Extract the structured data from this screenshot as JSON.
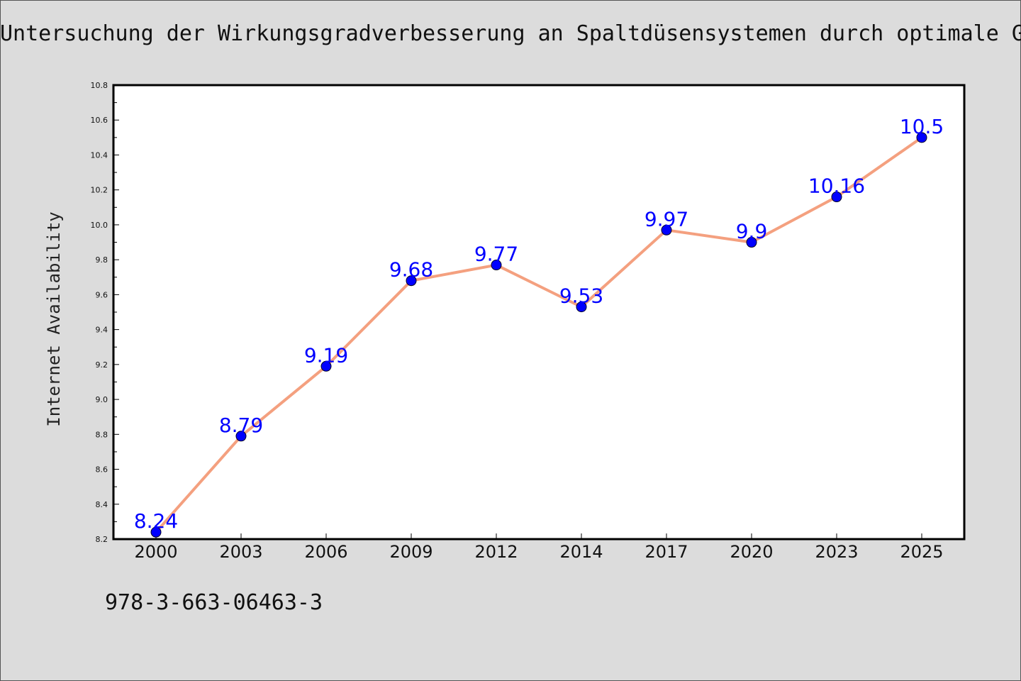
{
  "header": {
    "title": "Untersuchung der Wirkungsgradverbesserung an Spaltdüsensystemen durch optimale G"
  },
  "footer": {
    "isbn": "978-3-663-06463-3"
  },
  "colors": {
    "background": "#dcdcdc",
    "plot_background": "#ffffff",
    "line": "#f4a07f",
    "marker": "#0000ff",
    "data_label": "#0000ff"
  },
  "chart_data": {
    "type": "line",
    "title": "Untersuchung der Wirkungsgradverbesserung an Spaltdüsensystemen durch optimale G",
    "xlabel": "",
    "ylabel": "Internet Availability",
    "categories": [
      "2000",
      "2003",
      "2006",
      "2009",
      "2012",
      "2014",
      "2017",
      "2020",
      "2023",
      "2025"
    ],
    "series": [
      {
        "values": [
          8.24,
          8.79,
          9.19,
          9.68,
          9.77,
          9.53,
          9.97,
          9.9,
          10.16,
          10.5
        ]
      }
    ],
    "ylim": [
      8.2,
      10.8
    ],
    "yticks": [
      8.2,
      8.4,
      8.6,
      8.8,
      9.0,
      9.2,
      9.4,
      9.6,
      9.8,
      10.0,
      10.2,
      10.4,
      10.6,
      10.8
    ],
    "ytick_labels": [
      "8.2",
      "8.4",
      "8.6",
      "8.8",
      "9.0",
      "9.2",
      "9.4",
      "9.6",
      "9.8",
      "10.0",
      "10.2",
      "10.4",
      "10.6",
      "10.8"
    ],
    "data_labels": [
      "8.24",
      "8.79",
      "9.19",
      "9.68",
      "9.77",
      "9.53",
      "9.97",
      "9.9",
      "10.16",
      "10.5"
    ],
    "grid": false,
    "legend": "none"
  }
}
